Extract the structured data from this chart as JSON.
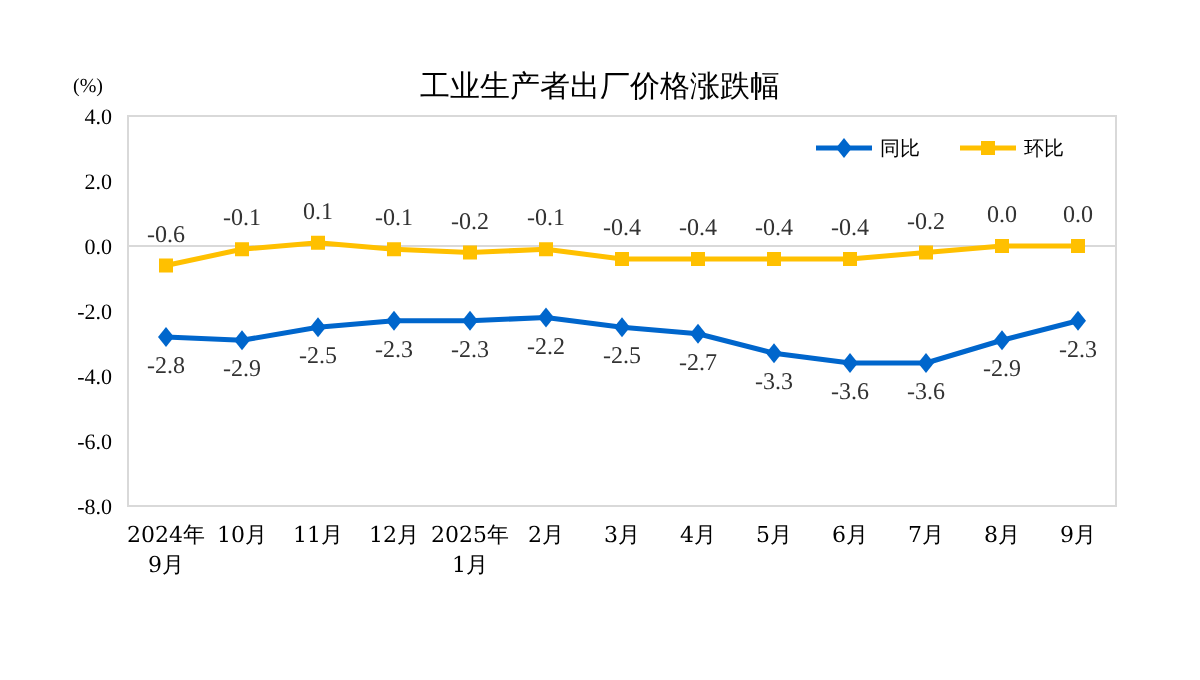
{
  "chart_data": {
    "type": "line",
    "title": "工业生产者出厂价格涨跌幅",
    "ylabel": "(%)",
    "categories": [
      "2024年\n9月",
      "10月",
      "11月",
      "12月",
      "2025年\n1月",
      "2月",
      "3月",
      "4月",
      "5月",
      "6月",
      "7月",
      "8月",
      "9月"
    ],
    "series": [
      {
        "name": "同比",
        "color": "#0066cc",
        "marker": "diamond",
        "values": [
          -2.8,
          -2.9,
          -2.5,
          -2.3,
          -2.3,
          -2.2,
          -2.5,
          -2.7,
          -3.3,
          -3.6,
          -3.6,
          -2.9,
          -2.3
        ],
        "value_labels": [
          "-2.8",
          "-2.9",
          "-2.5",
          "-2.3",
          "-2.3",
          "-2.2",
          "-2.5",
          "-2.7",
          "-3.3",
          "-3.6",
          "-3.6",
          "-2.9",
          "-2.3"
        ]
      },
      {
        "name": "环比",
        "color": "#ffc000",
        "marker": "square",
        "values": [
          -0.6,
          -0.1,
          0.1,
          -0.1,
          -0.2,
          -0.1,
          -0.4,
          -0.4,
          -0.4,
          -0.4,
          -0.2,
          0,
          0
        ],
        "value_labels": [
          "-0.6",
          "-0.1",
          "0.1",
          "-0.1",
          "-0.2",
          "-0.1",
          "-0.4",
          "-0.4",
          "-0.4",
          "-0.4",
          "-0.2",
          "0.0",
          "0.0"
        ]
      }
    ],
    "ylim": [
      -8,
      4
    ],
    "yticks": [
      {
        "value": 4,
        "label": "4.0"
      },
      {
        "value": 2,
        "label": "2.0"
      },
      {
        "value": 0,
        "label": "0.0"
      },
      {
        "value": -2,
        "label": "-2.0"
      },
      {
        "value": -4,
        "label": "-4.0"
      },
      {
        "value": -6,
        "label": "-6.0"
      },
      {
        "value": -8,
        "label": "-8.0"
      }
    ],
    "legend": "top right",
    "line_style": "solid"
  }
}
